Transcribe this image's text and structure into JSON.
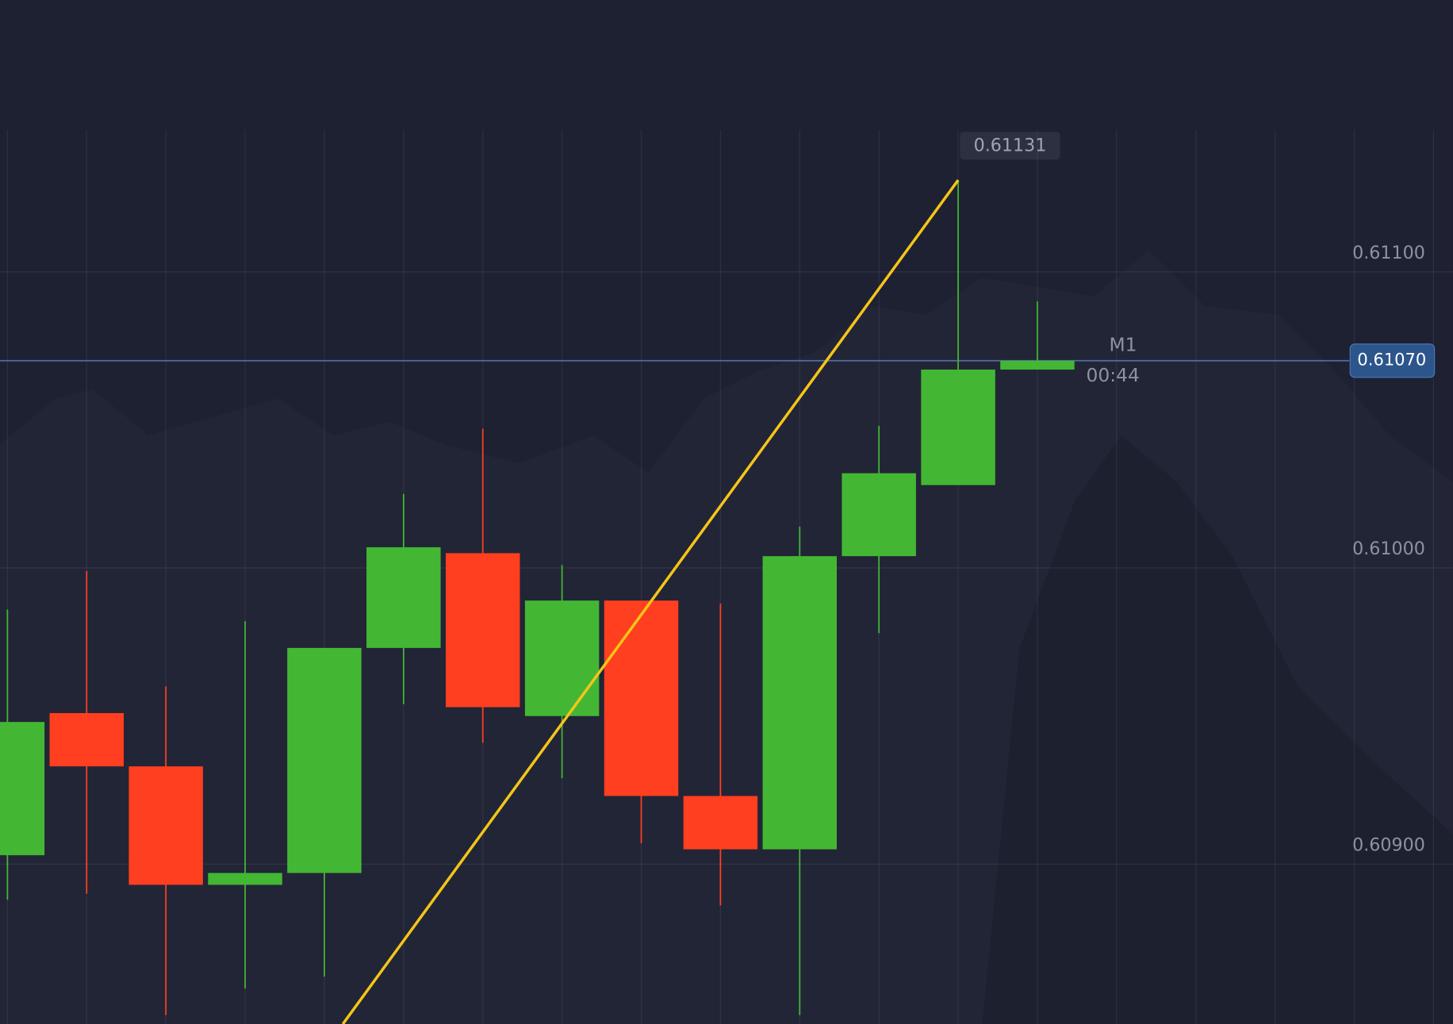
{
  "chart_data": {
    "type": "candlestick",
    "categories": [
      null,
      null,
      null,
      null,
      null,
      null,
      null,
      null,
      null,
      null,
      null,
      null,
      null,
      null
    ],
    "open": [
      0.60903,
      0.60951,
      0.60933,
      0.60893,
      0.60897,
      0.60973,
      0.61005,
      0.6095,
      0.60989,
      0.60923,
      0.60905,
      0.61004,
      0.61028,
      0.61067
    ],
    "high": [
      0.60986,
      0.60999,
      0.6096,
      0.60982,
      0.60973,
      0.61025,
      0.61047,
      0.61001,
      0.60989,
      0.60988,
      0.61014,
      0.61048,
      0.61131,
      0.6109
    ],
    "low": [
      0.60888,
      0.6089,
      0.60849,
      0.60858,
      0.60862,
      0.60954,
      0.60941,
      0.60929,
      0.60907,
      0.60886,
      0.60849,
      0.60978,
      0.61028,
      0.61067
    ],
    "close": [
      0.60948,
      0.60933,
      0.60893,
      0.60897,
      0.60973,
      0.61007,
      0.60953,
      0.60989,
      0.60923,
      0.60905,
      0.61004,
      0.61032,
      0.61067,
      0.6107
    ],
    "up_color": "#43b734",
    "down_color": "#ff3f1f",
    "ylim": [
      0.60846,
      0.61148
    ],
    "yticks": [
      {
        "value": 0.609,
        "label": "0.60900"
      },
      {
        "value": 0.61,
        "label": "0.61000"
      },
      {
        "value": 0.611,
        "label": "0.61100"
      }
    ],
    "grid": true,
    "high_label": "0.61131",
    "current_price": 0.6107,
    "current_price_label": "0.61070",
    "timeframe": "M1",
    "timer": "00:44"
  }
}
